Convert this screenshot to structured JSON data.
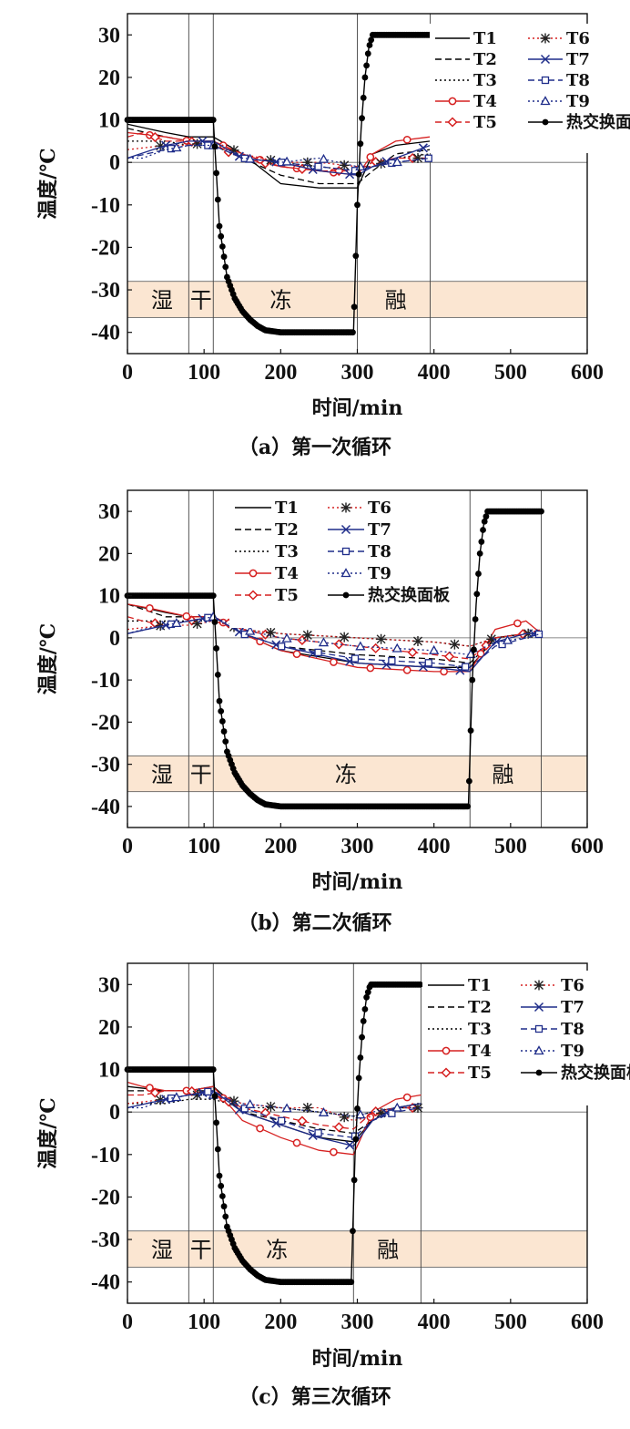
{
  "chart_data": [
    {
      "type": "line",
      "caption": "（a）第一次循环",
      "xlabel": "时间/min",
      "ylabel": "温度/℃",
      "xlim": [
        0,
        600
      ],
      "ylim": [
        -45,
        35
      ],
      "xticks": [
        "0",
        "100",
        "200",
        "300",
        "400",
        "500",
        "600"
      ],
      "yticks": [
        "30",
        "20",
        "10",
        "0",
        "-10",
        "-20",
        "-30",
        "-40"
      ],
      "phase_lines": [
        80,
        112,
        300,
        395
      ],
      "phases": [
        {
          "label": "湿",
          "x": 45
        },
        {
          "label": "干",
          "x": 96
        },
        {
          "label": "冻",
          "x": 200
        },
        {
          "label": "融",
          "x": 350
        }
      ],
      "band": [
        -36.5,
        -28
      ],
      "legend_position": "top-right",
      "series": [
        {
          "name": "T1",
          "x": [
            0,
            50,
            80,
            112,
            150,
            200,
            250,
            300,
            320,
            350,
            395
          ],
          "y": [
            9,
            7,
            6,
            6,
            2,
            -5,
            -6,
            -6,
            2,
            4,
            5
          ]
        },
        {
          "name": "T2",
          "x": [
            0,
            50,
            80,
            112,
            150,
            200,
            250,
            300,
            320,
            350,
            395
          ],
          "y": [
            8,
            6,
            5,
            5,
            1,
            -3,
            -5,
            -5,
            -2,
            2,
            3
          ]
        },
        {
          "name": "T3",
          "x": [
            0,
            50,
            80,
            112,
            150,
            200,
            250,
            300,
            320,
            350,
            395
          ],
          "y": [
            5,
            5,
            4,
            4,
            1,
            0,
            -1,
            -2,
            -1,
            1,
            2
          ]
        },
        {
          "name": "T4",
          "x": [
            0,
            50,
            80,
            112,
            150,
            200,
            250,
            300,
            320,
            350,
            395
          ],
          "y": [
            7,
            6,
            5,
            5,
            2,
            -1,
            -2,
            -3,
            2,
            5,
            6
          ]
        },
        {
          "name": "T5",
          "x": [
            0,
            20,
            50,
            80,
            112,
            150,
            200,
            250,
            300,
            320,
            350,
            395
          ],
          "y": [
            6,
            7,
            5,
            5,
            4,
            1,
            -1,
            -2,
            -2,
            0,
            1,
            1
          ]
        },
        {
          "name": "T6",
          "x": [
            0,
            50,
            80,
            112,
            150,
            200,
            250,
            300,
            320,
            350,
            395
          ],
          "y": [
            3,
            4,
            4,
            5,
            2,
            0,
            0,
            -1,
            -1,
            1,
            1
          ]
        },
        {
          "name": "T7",
          "x": [
            0,
            50,
            80,
            112,
            150,
            200,
            250,
            300,
            320,
            350,
            395
          ],
          "y": [
            1,
            4,
            5,
            5,
            1,
            0,
            -2,
            -3,
            -1,
            1,
            4
          ]
        },
        {
          "name": "T8",
          "x": [
            0,
            50,
            80,
            112,
            150,
            200,
            250,
            300,
            320,
            350,
            395
          ],
          "y": [
            1,
            3,
            4,
            4,
            1,
            0,
            -1,
            -2,
            -1,
            0,
            1
          ]
        },
        {
          "name": "T9",
          "x": [
            0,
            20,
            50,
            80,
            112,
            150,
            200,
            250,
            300,
            320,
            350,
            395
          ],
          "y": [
            1,
            1,
            3,
            4,
            4,
            1,
            0,
            1,
            -1,
            -1,
            0,
            1
          ]
        },
        {
          "name": "热交换面板",
          "x": [
            0,
            112,
            120,
            130,
            140,
            150,
            160,
            170,
            180,
            200,
            295,
            300,
            305,
            310,
            315,
            320,
            395
          ],
          "y": [
            10,
            10,
            -15,
            -27,
            -32,
            -35,
            -37,
            -38.5,
            -39.5,
            -40,
            -40,
            -10,
            8,
            20,
            27,
            30,
            30
          ]
        }
      ]
    },
    {
      "type": "line",
      "caption": "（b）第二次循环",
      "xlabel": "时间/min",
      "ylabel": "温度/℃",
      "xlim": [
        0,
        600
      ],
      "ylim": [
        -45,
        35
      ],
      "xticks": [
        "0",
        "100",
        "200",
        "300",
        "400",
        "500",
        "600"
      ],
      "yticks": [
        "30",
        "20",
        "10",
        "0",
        "-10",
        "-20",
        "-30",
        "-40"
      ],
      "phase_lines": [
        80,
        112,
        447,
        540
      ],
      "phases": [
        {
          "label": "湿",
          "x": 45
        },
        {
          "label": "干",
          "x": 96
        },
        {
          "label": "冻",
          "x": 285
        },
        {
          "label": "融",
          "x": 490
        }
      ],
      "band": [
        -36.5,
        -28
      ],
      "legend_position": "top",
      "series": [
        {
          "name": "T1",
          "x": [
            0,
            50,
            80,
            112,
            150,
            200,
            300,
            400,
            447,
            480,
            520,
            540
          ],
          "y": [
            8,
            6,
            5,
            5,
            1,
            -3,
            -6,
            -7,
            -7,
            0,
            1,
            1
          ]
        },
        {
          "name": "T2",
          "x": [
            0,
            50,
            80,
            112,
            150,
            200,
            300,
            400,
            447,
            480,
            520,
            540
          ],
          "y": [
            8,
            5,
            5,
            5,
            1,
            -2,
            -4,
            -5,
            -6,
            0,
            1,
            1
          ]
        },
        {
          "name": "T3",
          "x": [
            0,
            50,
            80,
            112,
            150,
            200,
            300,
            400,
            447,
            480,
            520,
            540
          ],
          "y": [
            4,
            4,
            4,
            4,
            2,
            1,
            0,
            -1,
            -2,
            0,
            1,
            1
          ]
        },
        {
          "name": "T4",
          "x": [
            0,
            30,
            80,
            112,
            150,
            200,
            300,
            400,
            447,
            480,
            520,
            540
          ],
          "y": [
            8,
            7,
            5,
            5,
            1,
            -3,
            -7,
            -8,
            -8,
            2,
            4,
            1
          ]
        },
        {
          "name": "T5",
          "x": [
            0,
            20,
            50,
            80,
            112,
            150,
            200,
            300,
            400,
            447,
            480,
            520,
            540
          ],
          "y": [
            5,
            4,
            3,
            4,
            5,
            2,
            0,
            -2,
            -4,
            -5,
            0,
            1,
            2
          ]
        },
        {
          "name": "T6",
          "x": [
            0,
            50,
            80,
            112,
            150,
            200,
            300,
            400,
            447,
            480,
            520,
            540
          ],
          "y": [
            2,
            3,
            3,
            4,
            2,
            1,
            0,
            -1,
            -2,
            0,
            1,
            1
          ]
        },
        {
          "name": "T7",
          "x": [
            0,
            50,
            80,
            112,
            150,
            200,
            300,
            400,
            447,
            480,
            520,
            540
          ],
          "y": [
            1,
            3,
            4,
            5,
            1,
            -2,
            -6,
            -7,
            -8,
            -1,
            1,
            1
          ]
        },
        {
          "name": "T8",
          "x": [
            0,
            50,
            80,
            112,
            150,
            200,
            300,
            400,
            447,
            480,
            520,
            540
          ],
          "y": [
            1,
            3,
            4,
            5,
            1,
            -2,
            -5,
            -6,
            -7,
            -2,
            0,
            1
          ]
        },
        {
          "name": "T9",
          "x": [
            0,
            20,
            50,
            80,
            112,
            150,
            200,
            300,
            400,
            447,
            480,
            520,
            540
          ],
          "y": [
            1,
            2,
            3,
            4,
            5,
            2,
            0,
            -2,
            -3,
            -4,
            -1,
            0,
            1
          ]
        },
        {
          "name": "热交换面板",
          "x": [
            0,
            112,
            120,
            130,
            140,
            150,
            160,
            170,
            180,
            200,
            445,
            450,
            455,
            460,
            465,
            470,
            540
          ],
          "y": [
            10,
            10,
            -15,
            -27,
            -32,
            -35,
            -37,
            -38.5,
            -39.5,
            -40,
            -40,
            -10,
            8,
            20,
            27,
            30,
            30
          ]
        }
      ]
    },
    {
      "type": "line",
      "caption": "（c）第三次循环",
      "xlabel": "时间/min",
      "ylabel": "温度/℃",
      "xlim": [
        0,
        600
      ],
      "ylim": [
        -45,
        35
      ],
      "xticks": [
        "0",
        "100",
        "200",
        "300",
        "400",
        "500",
        "600"
      ],
      "yticks": [
        "30",
        "20",
        "10",
        "0",
        "-10",
        "-20",
        "-30",
        "-40"
      ],
      "phase_lines": [
        80,
        112,
        295,
        383
      ],
      "phases": [
        {
          "label": "湿",
          "x": 45
        },
        {
          "label": "干",
          "x": 96
        },
        {
          "label": "冻",
          "x": 195
        },
        {
          "label": "融",
          "x": 340
        }
      ],
      "band": [
        -36.5,
        -28
      ],
      "legend_position": "top-right",
      "series": [
        {
          "name": "T1",
          "x": [
            0,
            50,
            80,
            112,
            150,
            200,
            250,
            295,
            320,
            350,
            383
          ],
          "y": [
            6,
            5,
            5,
            6,
            0,
            -3,
            -6,
            -7,
            -2,
            1,
            2
          ]
        },
        {
          "name": "T2",
          "x": [
            0,
            50,
            80,
            112,
            150,
            200,
            250,
            295,
            320,
            350,
            383
          ],
          "y": [
            5,
            5,
            5,
            5,
            0,
            -2,
            -4,
            -5,
            -2,
            1,
            1
          ]
        },
        {
          "name": "T3",
          "x": [
            0,
            50,
            80,
            112,
            150,
            200,
            250,
            295,
            320,
            350,
            383
          ],
          "y": [
            2,
            2,
            3,
            3,
            1,
            1,
            0,
            -1,
            0,
            1,
            1
          ]
        },
        {
          "name": "T4",
          "x": [
            0,
            20,
            50,
            80,
            112,
            150,
            200,
            250,
            295,
            320,
            350,
            383
          ],
          "y": [
            7,
            6,
            5,
            5,
            6,
            -2,
            -6,
            -9,
            -10,
            0,
            3,
            4
          ]
        },
        {
          "name": "T5",
          "x": [
            0,
            20,
            50,
            80,
            112,
            150,
            200,
            250,
            295,
            320,
            350,
            383
          ],
          "y": [
            4,
            4,
            5,
            5,
            4,
            1,
            -1,
            -3,
            -4,
            0,
            1,
            1
          ]
        },
        {
          "name": "T6",
          "x": [
            0,
            50,
            80,
            112,
            150,
            200,
            250,
            295,
            320,
            350,
            383
          ],
          "y": [
            2,
            3,
            4,
            4,
            2,
            1,
            1,
            -2,
            -1,
            1,
            1
          ]
        },
        {
          "name": "T7",
          "x": [
            0,
            50,
            80,
            112,
            150,
            200,
            250,
            295,
            320,
            350,
            383
          ],
          "y": [
            1,
            3,
            4,
            5,
            0,
            -3,
            -6,
            -8,
            -2,
            1,
            2
          ]
        },
        {
          "name": "T8",
          "x": [
            0,
            50,
            80,
            112,
            150,
            200,
            250,
            295,
            320,
            350,
            383
          ],
          "y": [
            1,
            3,
            4,
            5,
            1,
            -2,
            -5,
            -6,
            -2,
            0,
            1
          ]
        },
        {
          "name": "T9",
          "x": [
            0,
            20,
            50,
            80,
            112,
            150,
            200,
            250,
            295,
            320,
            350,
            383
          ],
          "y": [
            1,
            1,
            3,
            4,
            4,
            2,
            1,
            0,
            -1,
            0,
            1,
            1
          ]
        },
        {
          "name": "热交换面板",
          "x": [
            0,
            112,
            120,
            130,
            140,
            150,
            160,
            170,
            180,
            200,
            292,
            297,
            302,
            307,
            312,
            317,
            383
          ],
          "y": [
            10,
            10,
            -15,
            -27,
            -32,
            -35,
            -37,
            -38.5,
            -39.5,
            -40,
            -40,
            -10,
            8,
            20,
            27,
            30,
            30
          ]
        }
      ]
    }
  ],
  "series_styles": {
    "T1": {
      "color": "#000000",
      "dash": "",
      "marker": "none"
    },
    "T2": {
      "color": "#000000",
      "dash": "7,4",
      "marker": "none"
    },
    "T3": {
      "color": "#000000",
      "dash": "2,3",
      "marker": "none"
    },
    "T4": {
      "color": "#d62020",
      "dash": "",
      "marker": "circle"
    },
    "T5": {
      "color": "#d62020",
      "dash": "7,4",
      "marker": "diamond"
    },
    "T6": {
      "color": "#d62020",
      "dash": "2,3",
      "marker": "asterisk"
    },
    "T7": {
      "color": "#1f2d8a",
      "dash": "",
      "marker": "x"
    },
    "T8": {
      "color": "#1f2d8a",
      "dash": "7,4",
      "marker": "square"
    },
    "T9": {
      "color": "#1f2d8a",
      "dash": "2,3",
      "marker": "triangle"
    },
    "热交换面板": {
      "color": "#000000",
      "dash": "",
      "marker": "dot"
    }
  },
  "band_color": "#fbe6d2"
}
